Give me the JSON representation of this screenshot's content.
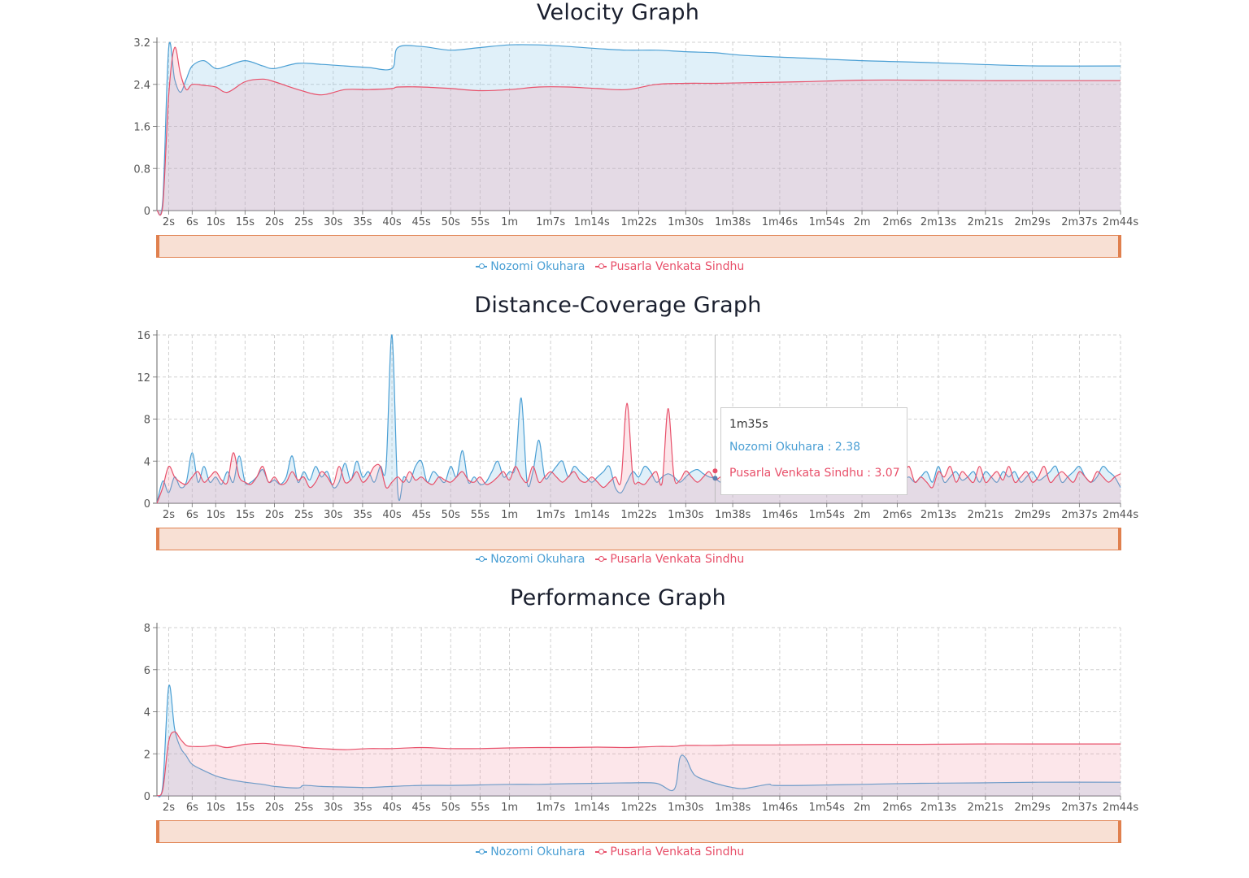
{
  "colors": {
    "series_a": "#4a9fd4",
    "series_b": "#e8506a",
    "slider": "#e0804e"
  },
  "x_tick_labels": [
    "2s",
    "6s",
    "10s",
    "15s",
    "20s",
    "25s",
    "30s",
    "35s",
    "40s",
    "45s",
    "50s",
    "55s",
    "1m",
    "1m7s",
    "1m14s",
    "1m22s",
    "1m30s",
    "1m38s",
    "1m46s",
    "1m54s",
    "2m",
    "2m6s",
    "2m13s",
    "2m21s",
    "2m29s",
    "2m37s",
    "2m44s"
  ],
  "legend": [
    "Nozomi Okuhara",
    "Pusarla Venkata Sindhu"
  ],
  "tooltip": {
    "title": "1m35s",
    "row_a": "Nozomi Okuhara : 2.38",
    "row_b": "Pusarla Venkata Sindhu : 3.07"
  },
  "chart_data": [
    {
      "type": "area",
      "title": "Velocity Graph",
      "x_seconds": [
        0,
        1,
        2,
        3,
        4,
        5,
        6,
        8,
        10,
        12,
        15,
        18,
        20,
        24,
        28,
        32,
        36,
        40,
        41,
        45,
        50,
        55,
        60,
        65,
        70,
        75,
        80,
        85,
        90,
        95,
        100,
        110,
        120,
        130,
        140,
        150,
        164
      ],
      "ylim": [
        0,
        3.2
      ],
      "yticks": [
        0,
        0.8,
        1.6,
        2.4,
        3.2
      ],
      "grid": true,
      "legend_position": "bottom",
      "series": [
        {
          "name": "Nozomi Okuhara",
          "values": [
            0,
            0.2,
            3.1,
            2.5,
            2.25,
            2.5,
            2.75,
            2.85,
            2.7,
            2.75,
            2.85,
            2.75,
            2.7,
            2.8,
            2.78,
            2.75,
            2.72,
            2.7,
            3.1,
            3.12,
            3.05,
            3.1,
            3.15,
            3.15,
            3.12,
            3.08,
            3.05,
            3.05,
            3.02,
            3.0,
            2.95,
            2.9,
            2.85,
            2.82,
            2.78,
            2.75,
            2.75
          ]
        },
        {
          "name": "Pusarla Venkata Sindhu",
          "values": [
            0,
            0.1,
            2.2,
            3.1,
            2.6,
            2.3,
            2.4,
            2.38,
            2.35,
            2.25,
            2.45,
            2.5,
            2.45,
            2.3,
            2.2,
            2.3,
            2.3,
            2.32,
            2.35,
            2.35,
            2.32,
            2.28,
            2.3,
            2.35,
            2.35,
            2.32,
            2.3,
            2.4,
            2.42,
            2.42,
            2.43,
            2.45,
            2.48,
            2.48,
            2.47,
            2.47,
            2.47
          ]
        }
      ]
    },
    {
      "type": "area",
      "title": "Distance-Coverage Graph",
      "x_seconds": [
        0,
        1,
        2,
        3,
        4,
        5,
        6,
        7,
        8,
        9,
        10,
        11,
        12,
        13,
        14,
        15,
        16,
        17,
        18,
        19,
        20,
        21,
        22,
        23,
        24,
        25,
        26,
        27,
        28,
        29,
        30,
        31,
        32,
        33,
        34,
        35,
        36,
        37,
        38,
        39,
        40,
        41,
        42,
        43,
        44,
        45,
        46,
        47,
        48,
        49,
        50,
        51,
        52,
        53,
        54,
        55,
        56,
        57,
        58,
        59,
        60,
        61,
        62,
        63,
        64,
        65,
        66,
        67,
        68,
        69,
        70,
        71,
        72,
        73,
        74,
        75,
        76,
        77,
        78,
        79,
        80,
        81,
        82,
        83,
        84,
        85,
        86,
        87,
        88,
        89,
        90,
        91,
        92,
        93,
        94,
        95,
        96,
        97,
        98,
        99,
        100,
        101,
        102,
        103,
        104,
        105,
        106,
        107,
        108,
        109,
        110,
        111,
        112,
        113,
        114,
        115,
        116,
        117,
        118,
        119,
        120,
        121,
        122,
        123,
        124,
        125,
        126,
        127,
        128,
        129,
        130,
        131,
        132,
        133,
        134,
        135,
        136,
        137,
        138,
        139,
        140,
        141,
        142,
        143,
        144,
        145,
        146,
        147,
        148,
        149,
        150,
        151,
        152,
        153,
        154,
        155,
        156,
        157,
        158,
        159,
        160,
        161,
        162,
        163,
        164
      ],
      "ylim": [
        0,
        16
      ],
      "yticks": [
        0,
        4,
        8,
        12,
        16
      ],
      "grid": true,
      "legend_position": "bottom",
      "series": [
        {
          "name": "Nozomi Okuhara",
          "values": [
            0,
            2.1,
            1.0,
            2.5,
            1.5,
            2.0,
            4.8,
            2.0,
            3.5,
            2.0,
            2.5,
            1.8,
            3.0,
            2.0,
            4.5,
            2.0,
            2.0,
            2.5,
            3.2,
            2.0,
            2.2,
            1.8,
            2.5,
            4.5,
            2.0,
            3.0,
            2.2,
            3.5,
            2.5,
            3.0,
            1.5,
            2.0,
            3.8,
            2.2,
            4.0,
            2.5,
            3.0,
            2.0,
            3.5,
            3.5,
            16.0,
            1.0,
            2.5,
            2.0,
            3.5,
            4.0,
            2.0,
            3.0,
            2.5,
            2.0,
            3.5,
            2.5,
            5.0,
            2.0,
            2.5,
            1.8,
            2.0,
            3.0,
            4.0,
            2.5,
            3.0,
            3.5,
            10.0,
            2.0,
            3.0,
            6.0,
            2.5,
            2.8,
            3.5,
            4.0,
            2.5,
            3.5,
            3.0,
            2.5,
            2.0,
            2.5,
            3.0,
            3.5,
            1.5,
            1.0,
            2.0,
            3.0,
            2.5,
            3.5,
            3.0,
            2.0,
            2.5,
            2.8,
            2.5,
            2.0,
            2.5,
            3.0,
            3.2,
            2.8,
            2.5,
            2.38,
            2.0,
            2.5,
            3.0,
            2.2,
            2.5,
            2.0,
            2.5,
            3.0,
            2.0,
            2.5,
            2.0,
            2.5,
            3.0,
            2.0,
            2.5,
            2.0,
            2.5,
            3.0,
            2.2,
            2.5,
            2.0,
            2.5,
            3.0,
            2.8,
            2.2,
            1.0,
            2.5,
            3.0,
            2.0,
            2.5,
            3.0,
            2.2,
            2.5,
            2.0,
            2.5,
            3.0,
            2.0,
            3.5,
            2.0,
            2.5,
            3.0,
            2.2,
            2.5,
            3.0,
            2.0,
            3.0,
            2.5,
            2.0,
            3.0,
            2.5,
            3.0,
            2.0,
            2.5,
            3.0,
            2.2,
            2.5,
            3.0,
            3.5,
            2.0,
            2.5,
            3.0,
            3.5,
            2.5,
            2.0,
            2.5,
            3.5,
            3.0,
            2.5,
            1.5
          ]
        },
        {
          "name": "Pusarla Venkata Sindhu",
          "values": [
            0,
            1.5,
            3.5,
            2.5,
            2.0,
            1.8,
            2.5,
            3.0,
            2.0,
            2.5,
            3.0,
            2.2,
            2.0,
            4.8,
            2.5,
            2.0,
            1.8,
            2.5,
            3.5,
            2.0,
            2.5,
            1.8,
            2.0,
            3.0,
            2.2,
            2.5,
            1.5,
            2.0,
            3.0,
            2.5,
            1.8,
            3.5,
            2.0,
            2.2,
            3.0,
            2.0,
            2.5,
            3.5,
            3.5,
            1.5,
            2.0,
            2.5,
            2.0,
            3.0,
            2.2,
            2.5,
            2.0,
            1.8,
            2.5,
            2.2,
            2.0,
            2.5,
            3.0,
            2.2,
            2.0,
            2.5,
            1.8,
            2.0,
            2.5,
            3.0,
            2.2,
            3.5,
            2.5,
            2.0,
            3.5,
            2.0,
            2.5,
            3.0,
            2.5,
            2.0,
            2.5,
            3.0,
            2.2,
            2.0,
            2.5,
            2.0,
            1.5,
            2.0,
            2.5,
            2.2,
            9.5,
            2.5,
            2.0,
            1.8,
            2.5,
            3.0,
            2.0,
            9.0,
            2.5,
            2.2,
            3.07,
            2.5,
            2.0,
            2.5,
            3.0,
            2.2,
            2.5,
            2.0,
            2.2,
            2.5,
            3.0,
            2.0,
            2.5,
            2.2,
            2.0,
            2.5,
            3.0,
            2.0,
            2.5,
            2.2,
            2.0,
            3.0,
            2.5,
            2.2,
            2.0,
            2.5,
            3.0,
            2.5,
            2.0,
            1.8,
            2.5,
            3.5,
            2.0,
            2.5,
            3.0,
            3.5,
            2.0,
            2.5,
            3.5,
            2.0,
            2.5,
            2.0,
            1.5,
            3.0,
            2.5,
            3.5,
            2.0,
            3.0,
            2.5,
            2.0,
            3.5,
            2.0,
            2.5,
            3.0,
            2.2,
            3.5,
            2.0,
            2.5,
            3.0,
            2.0,
            2.5,
            3.5,
            2.0,
            2.5,
            3.0,
            2.5,
            2.0,
            3.0,
            2.5,
            2.0,
            3.0,
            2.5,
            2.0,
            2.5,
            2.8
          ]
        }
      ]
    },
    {
      "type": "area",
      "title": "Performance Graph",
      "x_seconds": [
        0,
        1,
        2,
        3,
        4,
        5,
        6,
        8,
        10,
        12,
        15,
        18,
        20,
        24,
        25,
        28,
        32,
        36,
        40,
        45,
        50,
        55,
        60,
        65,
        70,
        75,
        80,
        85,
        88,
        89,
        90,
        91,
        92,
        95,
        98,
        100,
        104,
        105,
        110,
        120,
        130,
        140,
        150,
        164
      ],
      "ylim": [
        0,
        8
      ],
      "yticks": [
        0,
        2,
        4,
        6,
        8
      ],
      "grid": true,
      "legend_position": "bottom",
      "series": [
        {
          "name": "Nozomi Okuhara",
          "values": [
            0,
            0.5,
            5.2,
            3.2,
            2.3,
            1.9,
            1.5,
            1.2,
            0.95,
            0.8,
            0.65,
            0.55,
            0.45,
            0.38,
            0.5,
            0.45,
            0.42,
            0.4,
            0.45,
            0.5,
            0.5,
            0.52,
            0.55,
            0.55,
            0.58,
            0.6,
            0.62,
            0.6,
            0.3,
            1.8,
            1.8,
            1.2,
            0.9,
            0.6,
            0.4,
            0.35,
            0.55,
            0.5,
            0.5,
            0.55,
            0.6,
            0.62,
            0.65,
            0.65
          ]
        },
        {
          "name": "Pusarla Venkata Sindhu",
          "values": [
            0,
            0.3,
            2.6,
            3.05,
            2.7,
            2.4,
            2.35,
            2.35,
            2.4,
            2.3,
            2.45,
            2.5,
            2.45,
            2.35,
            2.3,
            2.25,
            2.2,
            2.25,
            2.25,
            2.3,
            2.25,
            2.25,
            2.28,
            2.3,
            2.3,
            2.32,
            2.3,
            2.35,
            2.35,
            2.38,
            2.4,
            2.4,
            2.4,
            2.4,
            2.42,
            2.42,
            2.42,
            2.42,
            2.43,
            2.45,
            2.45,
            2.47,
            2.47,
            2.47
          ]
        }
      ]
    }
  ]
}
